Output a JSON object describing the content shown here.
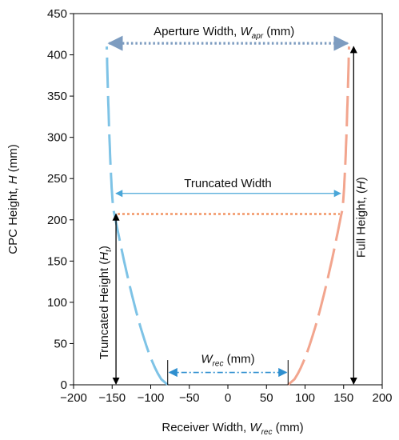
{
  "axes": {
    "xlabel_prefix": "Receiver Width, ",
    "xlabel_var": "W",
    "xlabel_sub": "rec",
    "xlabel_unit": " (mm)",
    "ylabel_prefix": "CPC Height, ",
    "ylabel_var": "H",
    "ylabel_unit": " (mm)",
    "xlim": [
      -200,
      200
    ],
    "ylim": [
      0,
      450
    ],
    "xticks": [
      "−200",
      "−150",
      "−100",
      "−50",
      "0",
      "50",
      "100",
      "150",
      "200"
    ],
    "yticks": [
      "0",
      "50",
      "100",
      "150",
      "200",
      "250",
      "300",
      "350",
      "400",
      "450"
    ]
  },
  "annotations": {
    "aperture_prefix": "Aperture Width, ",
    "aperture_var": "W",
    "aperture_sub": "apr",
    "aperture_unit": " (mm)",
    "truncated_width": "Truncated Width",
    "receiver_var": "W",
    "receiver_sub": "rec",
    "receiver_unit": " (mm)",
    "full_height_prefix": "Full Height, (",
    "full_height_var": "H",
    "full_height_suffix": ")",
    "truncated_height_prefix": "Truncated Height (",
    "truncated_height_var": "H",
    "truncated_height_sub": "t",
    "truncated_height_suffix": ")"
  },
  "colors": {
    "left_curve": "#7ec3e6",
    "right_curve": "#f2a58e",
    "aperture_arrow": "#7d9cc0",
    "truncated_line": "#f4a57c",
    "truncated_arrow": "#4aa6d8",
    "receiver_arrow": "#2f8fcf",
    "height_arrow": "#000000"
  },
  "chart_data": {
    "type": "diagram",
    "x_range": [
      -200,
      200
    ],
    "y_range": [
      0,
      450
    ],
    "receiver_half_width": 78,
    "truncated_height": 207,
    "full_height": 410,
    "aperture_half_width": 157,
    "truncated_half_width": 147
  }
}
